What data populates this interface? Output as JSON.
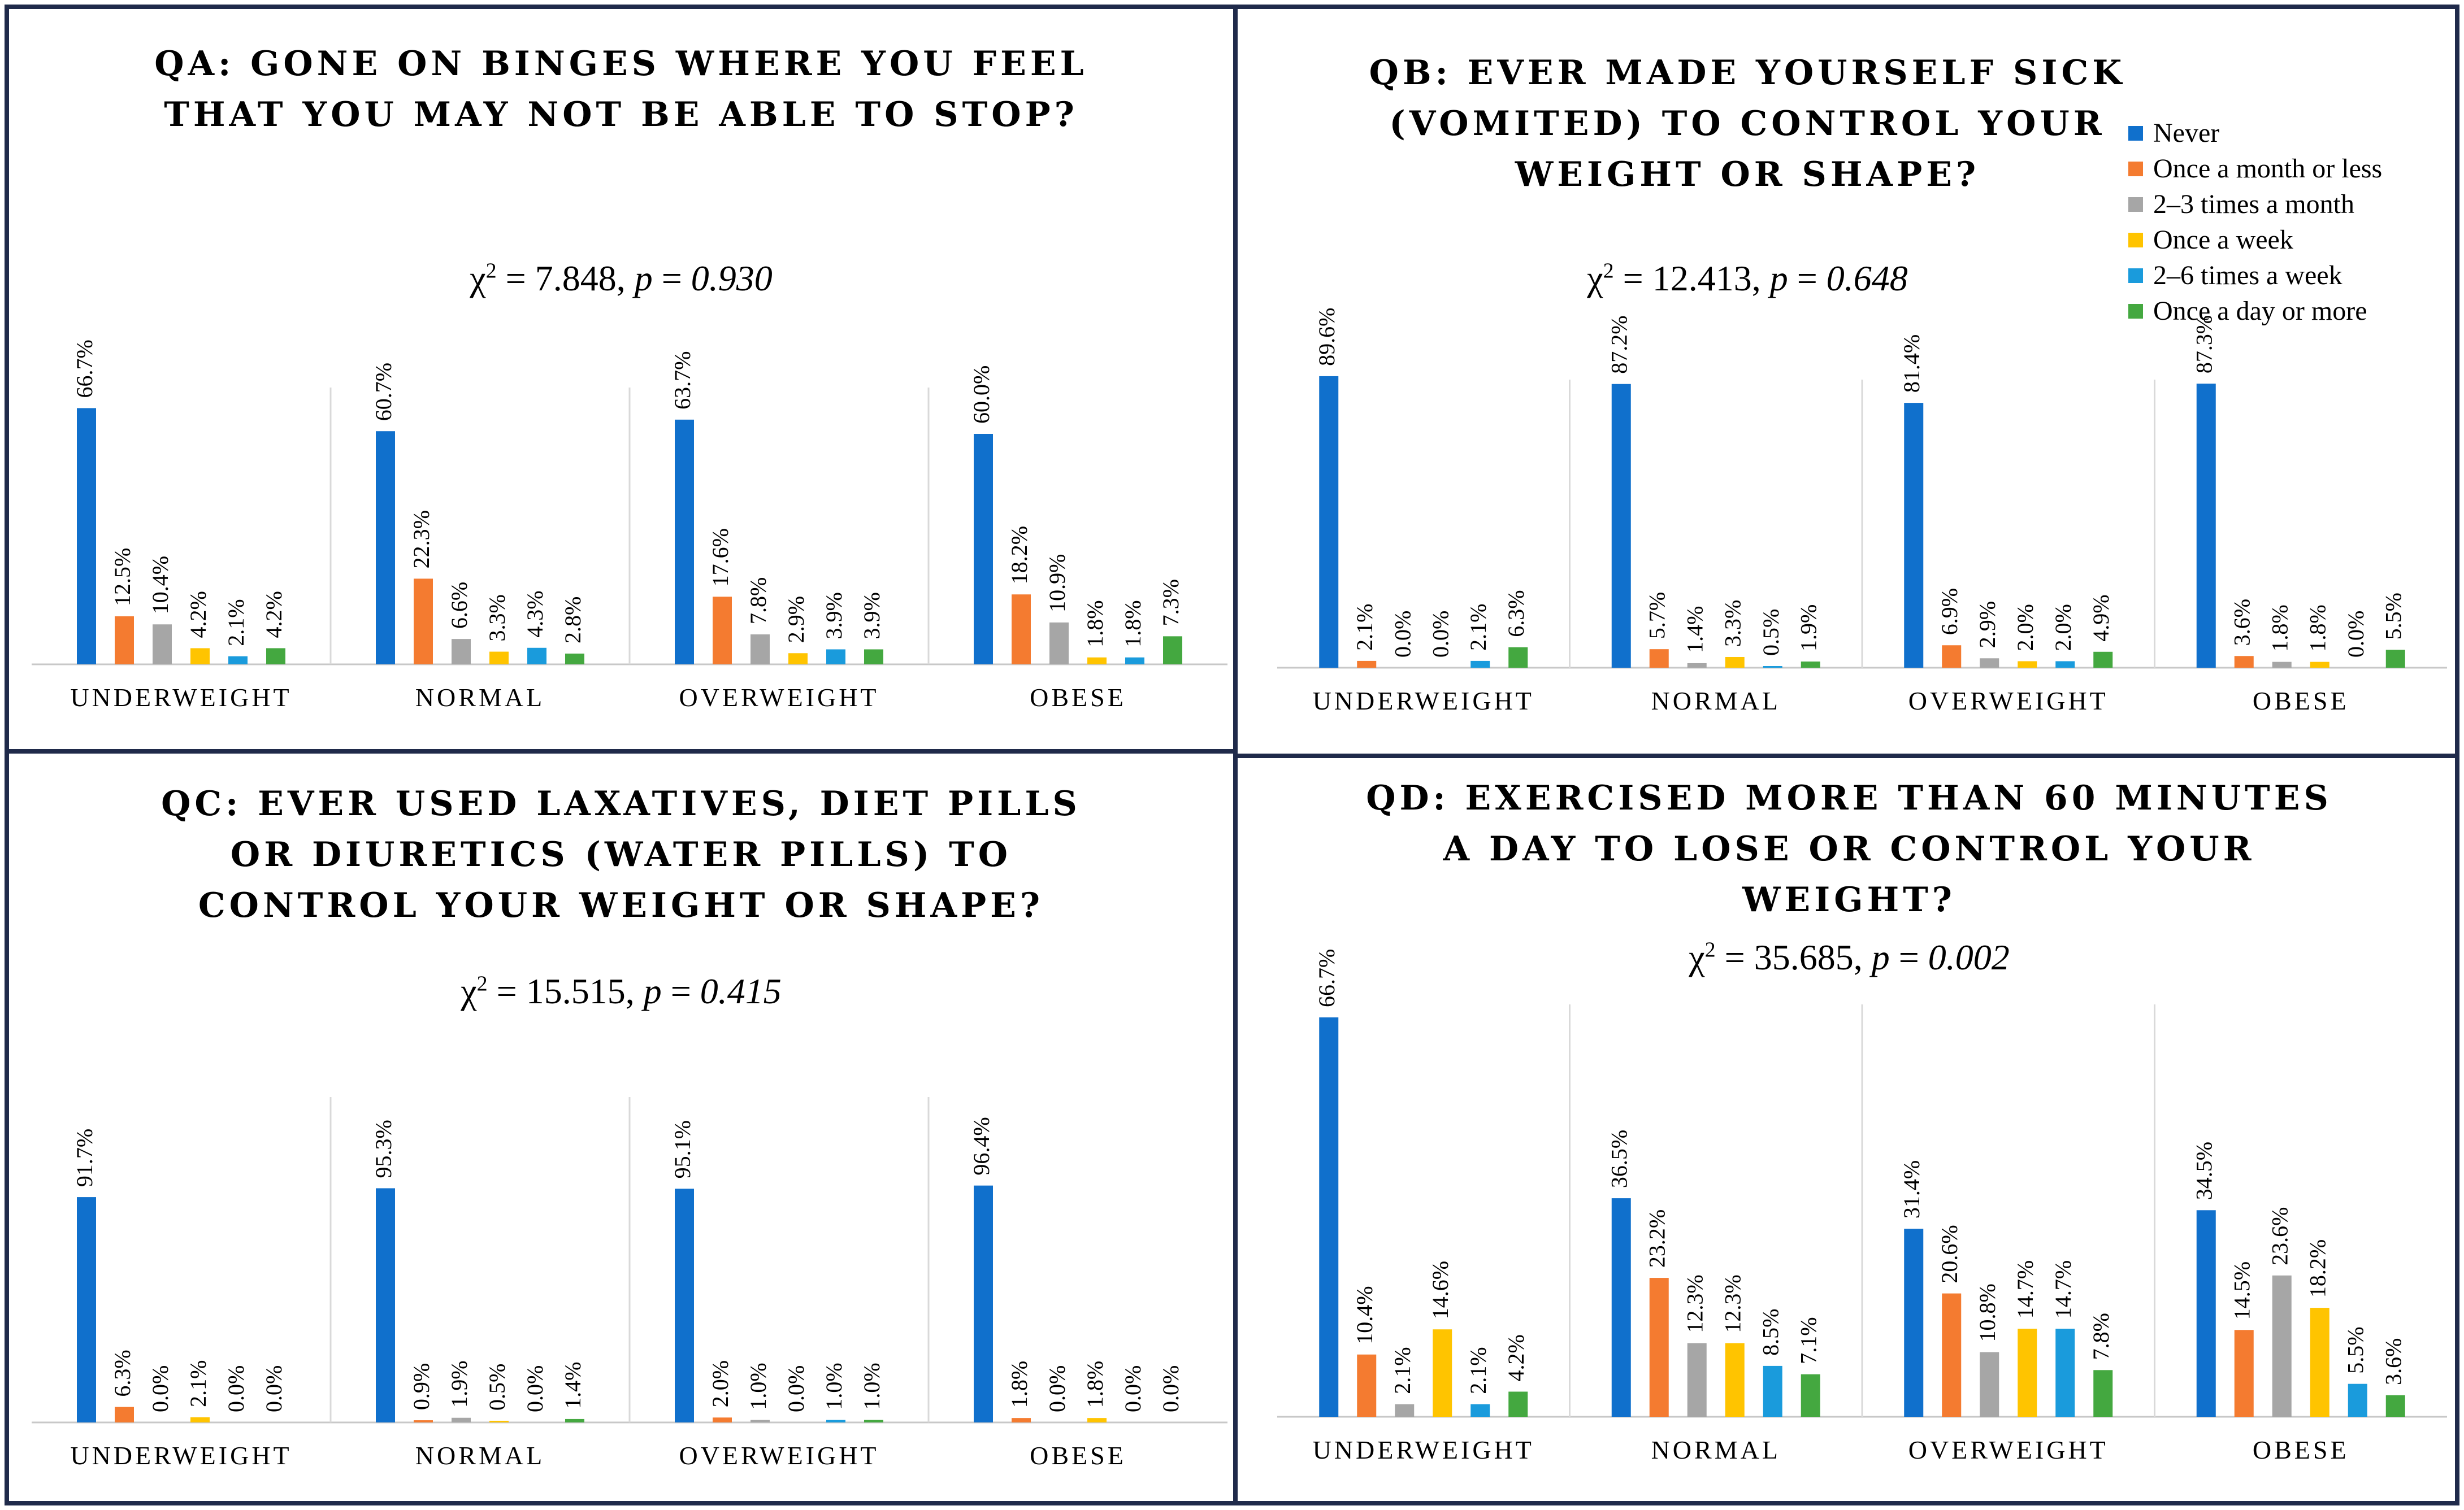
{
  "colors": {
    "Never": "#1070CC",
    "Once a month or less": "#F47B30",
    "2–3 times a month": "#A6A6A6",
    "Once a week": "#FFC400",
    "2–6 times a week": "#1A9BDC",
    "Once a day or more": "#44A840"
  },
  "legend": {
    "items": [
      "Never",
      "Once a month or less",
      "2–3 times a month",
      "Once a week",
      "2–6 times a week",
      "Once a day or more"
    ]
  },
  "chart_data": [
    {
      "type": "bar",
      "id": "qa",
      "title_lines": [
        "QA: GONE ON BINGES WHERE YOU FEEL",
        "THAT YOU MAY NOT BE ABLE TO STOP?"
      ],
      "stat": {
        "chi": "7.848",
        "p": "0.930"
      },
      "categories": [
        "UNDERWEIGHT",
        "NORMAL",
        "OVERWEIGHT",
        "OBESE"
      ],
      "series": [
        {
          "name": "Never",
          "values": [
            66.7,
            60.7,
            63.7,
            60.0
          ],
          "labels": [
            "66.7%",
            "60.7%",
            "63.7%",
            "60.0%"
          ]
        },
        {
          "name": "Once a month or less",
          "values": [
            12.5,
            22.3,
            17.6,
            18.2
          ],
          "labels": [
            "12.5%",
            "22.3%",
            "17.6%",
            "18.2%"
          ]
        },
        {
          "name": "2–3 times a month",
          "values": [
            10.4,
            6.6,
            7.8,
            10.9
          ],
          "labels": [
            "10.4%",
            "6.6%",
            "7.8%",
            "10.9%"
          ]
        },
        {
          "name": "Once a week",
          "values": [
            4.2,
            3.3,
            2.9,
            1.8
          ],
          "labels": [
            "4.2%",
            "3.3%",
            "2.9%",
            "1.8%"
          ]
        },
        {
          "name": "2–6 times a week",
          "values": [
            2.1,
            4.3,
            3.9,
            1.8
          ],
          "labels": [
            "2.1%",
            "4.3%",
            "3.9%",
            "1.8%"
          ]
        },
        {
          "name": "Once a day or more",
          "values": [
            4.2,
            2.8,
            3.9,
            7.3
          ],
          "labels": [
            "4.2%",
            "2.8%",
            "3.9%",
            "7.3%"
          ]
        }
      ]
    },
    {
      "type": "bar",
      "id": "qb",
      "title_lines": [
        "QB: EVER MADE YOURSELF SICK",
        "(VOMITED) TO CONTROL YOUR",
        "WEIGHT OR SHAPE?"
      ],
      "stat": {
        "chi": "12.413",
        "p": "0.648"
      },
      "categories": [
        "UNDERWEIGHT",
        "NORMAL",
        "OVERWEIGHT",
        "OBESE"
      ],
      "series": [
        {
          "name": "Never",
          "values": [
            89.6,
            87.2,
            81.4,
            87.3
          ],
          "labels": [
            "89.6%",
            "87.2%",
            "81.4%",
            "87.3%"
          ]
        },
        {
          "name": "Once a month or less",
          "values": [
            2.1,
            5.7,
            6.9,
            3.6
          ],
          "labels": [
            "2.1%",
            "5.7%",
            "6.9%",
            "3.6%"
          ]
        },
        {
          "name": "2–3 times a month",
          "values": [
            0.0,
            1.4,
            2.9,
            1.8
          ],
          "labels": [
            "0.0%",
            "1.4%",
            "2.9%",
            "1.8%"
          ]
        },
        {
          "name": "Once a week",
          "values": [
            0.0,
            3.3,
            2.0,
            1.8
          ],
          "labels": [
            "0.0%",
            "3.3%",
            "2.0%",
            "1.8%"
          ]
        },
        {
          "name": "2–6 times a week",
          "values": [
            2.1,
            0.5,
            2.0,
            0.0
          ],
          "labels": [
            "2.1%",
            "0.5%",
            "2.0%",
            "0.0%"
          ]
        },
        {
          "name": "Once a day or more",
          "values": [
            6.3,
            1.9,
            4.9,
            5.5
          ],
          "labels": [
            "6.3%",
            "1.9%",
            "4.9%",
            "5.5%"
          ]
        }
      ]
    },
    {
      "type": "bar",
      "id": "qc",
      "title_lines": [
        "QC: EVER USED LAXATIVES, DIET PILLS",
        "OR DIURETICS (WATER PILLS) TO",
        "CONTROL YOUR WEIGHT OR SHAPE?"
      ],
      "stat": {
        "chi": "15.515",
        "p": "0.415"
      },
      "categories": [
        "UNDERWEIGHT",
        "NORMAL",
        "OVERWEIGHT",
        "OBESE"
      ],
      "series": [
        {
          "name": "Never",
          "values": [
            91.7,
            95.3,
            95.1,
            96.4
          ],
          "labels": [
            "91.7%",
            "95.3%",
            "95.1%",
            "96.4%"
          ]
        },
        {
          "name": "Once a month or less",
          "values": [
            6.3,
            0.9,
            2.0,
            1.8
          ],
          "labels": [
            "6.3%",
            "0.9%",
            "2.0%",
            "1.8%"
          ]
        },
        {
          "name": "2–3 times a month",
          "values": [
            0.0,
            1.9,
            1.0,
            0.0
          ],
          "labels": [
            "0.0%",
            "1.9%",
            "1.0%",
            "0.0%"
          ]
        },
        {
          "name": "Once a week",
          "values": [
            2.1,
            0.5,
            0.0,
            1.8
          ],
          "labels": [
            "2.1%",
            "0.5%",
            "0.0%",
            "1.8%"
          ]
        },
        {
          "name": "2–6 times a week",
          "values": [
            0.0,
            0.0,
            1.0,
            0.0
          ],
          "labels": [
            "0.0%",
            "0.0%",
            "1.0%",
            "0.0%"
          ]
        },
        {
          "name": "Once a day or more",
          "values": [
            0.0,
            1.4,
            1.0,
            0.0
          ],
          "labels": [
            "0.0%",
            "1.4%",
            "1.0%",
            "0.0%"
          ]
        }
      ]
    },
    {
      "type": "bar",
      "id": "qd",
      "title_lines": [
        "QD: EXERCISED MORE THAN 60 MINUTES",
        "A DAY TO LOSE OR CONTROL YOUR",
        "WEIGHT?"
      ],
      "stat": {
        "chi": "35.685",
        "p": "0.002"
      },
      "categories": [
        "UNDERWEIGHT",
        "NORMAL",
        "OVERWEIGHT",
        "OBESE"
      ],
      "series": [
        {
          "name": "Never",
          "values": [
            66.7,
            36.5,
            31.4,
            34.5
          ],
          "labels": [
            "66.7%",
            "36.5%",
            "31.4%",
            "34.5%"
          ]
        },
        {
          "name": "Once a month or less",
          "values": [
            10.4,
            23.2,
            20.6,
            14.5
          ],
          "labels": [
            "10.4%",
            "23.2%",
            "20.6%",
            "14.5%"
          ]
        },
        {
          "name": "2–3 times a month",
          "values": [
            2.1,
            12.3,
            10.8,
            23.6
          ],
          "labels": [
            "2.1%",
            "12.3%",
            "10.8%",
            "23.6%"
          ]
        },
        {
          "name": "Once a week",
          "values": [
            14.6,
            12.3,
            14.7,
            18.2
          ],
          "labels": [
            "14.6%",
            "12.3%",
            "14.7%",
            "18.2%"
          ]
        },
        {
          "name": "2–6 times a week",
          "values": [
            2.1,
            8.5,
            14.7,
            5.5
          ],
          "labels": [
            "2.1%",
            "8.5%",
            "14.7%",
            "5.5%"
          ]
        },
        {
          "name": "Once a day or more",
          "values": [
            4.2,
            7.1,
            7.8,
            3.6
          ],
          "labels": [
            "4.2%",
            "7.1%",
            "7.8%",
            "3.6%"
          ]
        }
      ]
    }
  ]
}
